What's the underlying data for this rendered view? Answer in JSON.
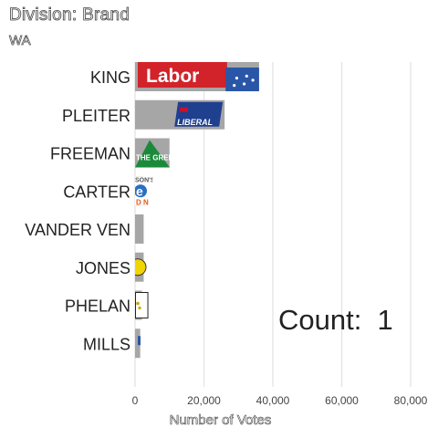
{
  "header": {
    "title": "Division: Brand",
    "subtitle": "WA"
  },
  "count_label": "Count:  1",
  "colors": {
    "bar": "#a6a6a6",
    "grid": "#e3e3e3",
    "labor_red": "#d2232a",
    "blue": "#2a56a8",
    "green": "#1a8a3a",
    "yellow": "#f2d500"
  },
  "chart_data": {
    "type": "bar",
    "orientation": "horizontal",
    "title": "Division: Brand",
    "subtitle": "WA",
    "xlabel": "Number of Votes",
    "ylabel": "",
    "xlim": [
      0,
      85000
    ],
    "xticks": [
      0,
      20000,
      40000,
      60000,
      80000
    ],
    "xtick_labels": [
      "0",
      "20,000",
      "40,000",
      "60,000",
      "80,000"
    ],
    "grid": true,
    "categories": [
      "KING",
      "PLEITER",
      "FREEMAN",
      "CARTER",
      "VANDER VEN",
      "JONES",
      "PHELAN",
      "MILLS"
    ],
    "values": [
      36000,
      26000,
      10000,
      2500,
      2500,
      2500,
      2000,
      1500
    ],
    "party_logos": [
      "Labor",
      "LIBERAL",
      "THE GREENS",
      "SON'S",
      "",
      "",
      "",
      ""
    ]
  }
}
